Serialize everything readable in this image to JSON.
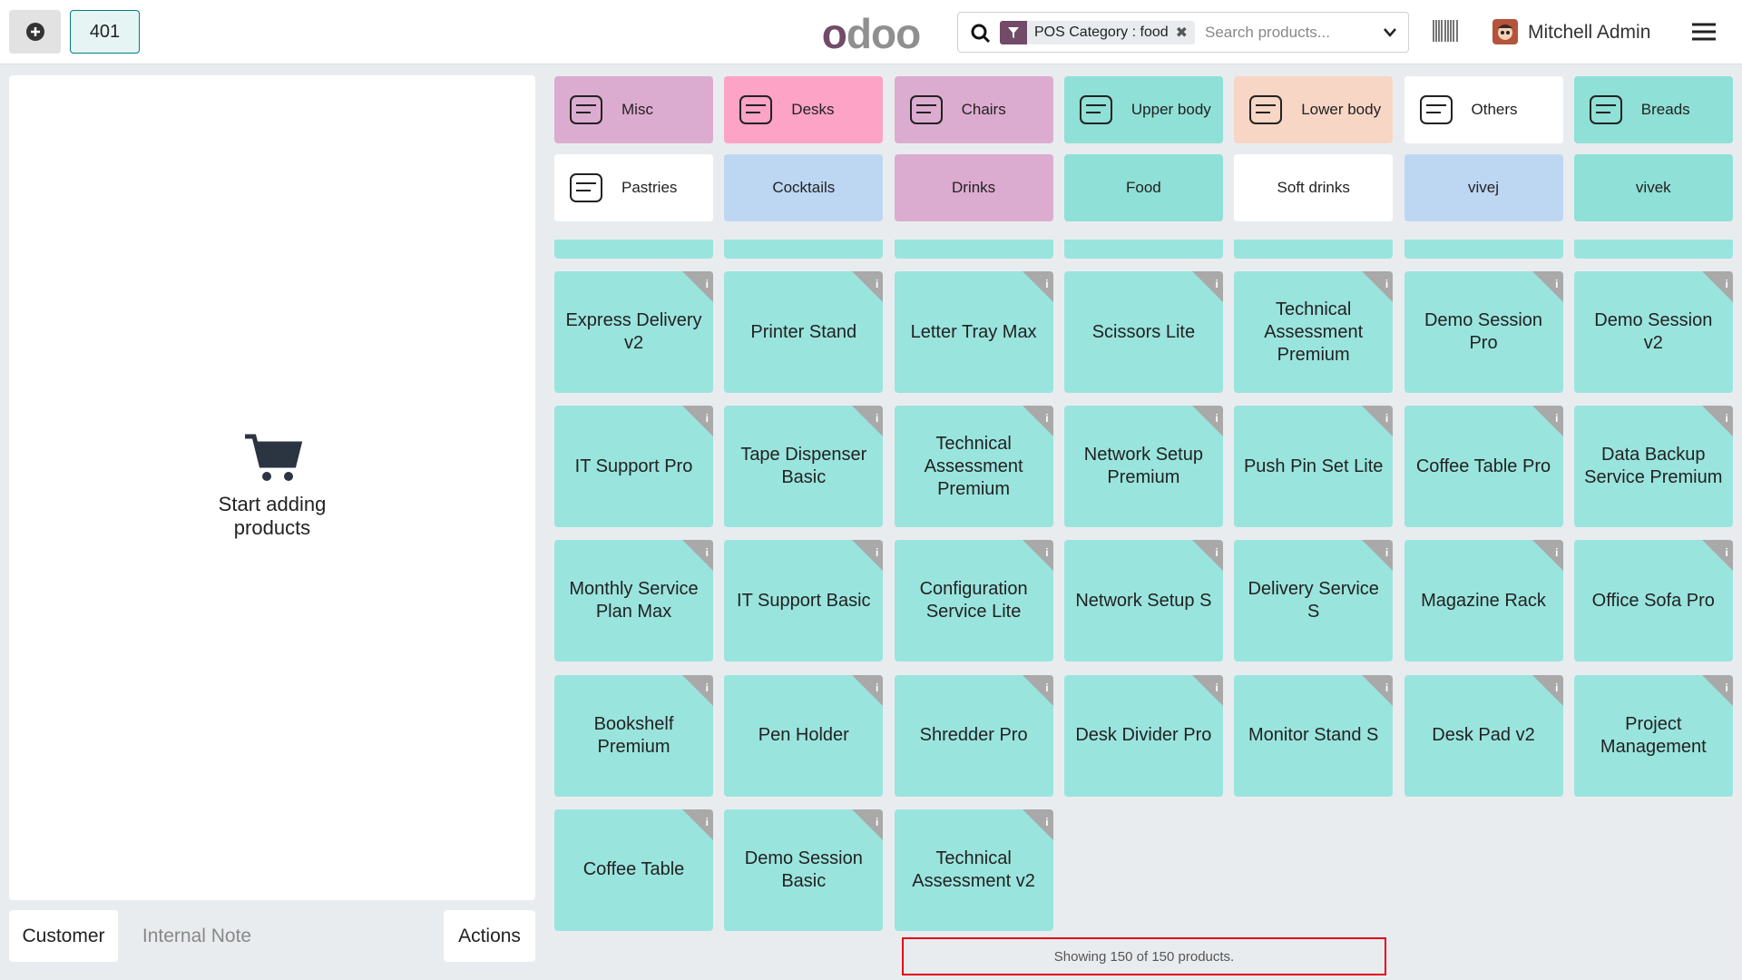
{
  "header": {
    "new_order_button": "401",
    "logo": "odoo",
    "search": {
      "filter": "POS Category : food",
      "placeholder": "Search products..."
    },
    "user": "Mitchell Admin"
  },
  "order_panel": {
    "empty_message": "Start adding products",
    "buttons": [
      "Customer",
      "Internal Note",
      "Actions"
    ]
  },
  "categories": [
    "Misc",
    "Desks",
    "Chairs",
    "Upper body",
    "Lower body",
    "Others",
    "Breads",
    "Pastries",
    "Cocktails",
    "Drinks",
    "Food",
    "Soft drinks",
    "vivej",
    "vivek"
  ],
  "products": [
    "Express Delivery v2",
    "Printer Stand",
    "Letter Tray Max",
    "Scissors Lite",
    "Technical Assessment Premium",
    "Demo Session Pro",
    "Demo Session v2",
    "IT Support Pro",
    "Tape Dispenser Basic",
    "Technical Assessment Premium",
    "Network Setup Premium",
    "Push Pin Set Lite",
    "Coffee Table Pro",
    "Data Backup Service Premium",
    "Monthly Service Plan Max",
    "IT Support Basic",
    "Configuration Service Lite",
    "Network Setup S",
    "Delivery Service S",
    "Magazine Rack",
    "Office Sofa Pro",
    "Bookshelf Premium",
    "Pen Holder",
    "Shredder Pro",
    "Desk Divider Pro",
    "Monitor Stand S",
    "Desk Pad v2",
    "Project Management",
    "Coffee Table",
    "Demo Session Basic",
    "Technical Assessment v2"
  ],
  "footer": "Showing 150 of 150 products."
}
